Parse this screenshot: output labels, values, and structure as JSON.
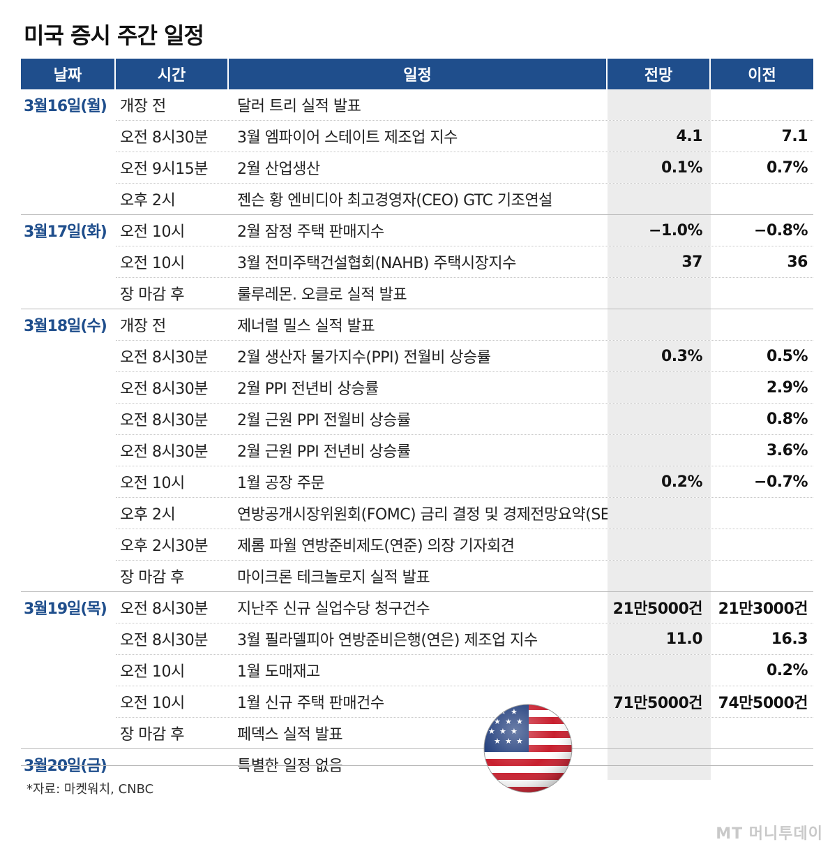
{
  "title": "미국 증시 주간 일정",
  "headers": [
    "날짜",
    "시간",
    "일정",
    "전망",
    "이전"
  ],
  "days": [
    {
      "date": "3월16일(월)",
      "rows": [
        {
          "time": "개장 전",
          "event": "달러 트리 실적 발표",
          "forecast": "",
          "previous": ""
        },
        {
          "time": "오전 8시30분",
          "event": "3월 엠파이어 스테이트 제조업 지수",
          "forecast": "4.1",
          "previous": "7.1"
        },
        {
          "time": "오전 9시15분",
          "event": "2월 산업생산",
          "forecast": "0.1%",
          "previous": "0.7%"
        },
        {
          "time": "오후 2시",
          "event": "젠슨 황 엔비디아 최고경영자(CEO) GTC 기조연설",
          "forecast": "",
          "previous": ""
        }
      ]
    },
    {
      "date": "3월17일(화)",
      "rows": [
        {
          "time": "오전 10시",
          "event": "2월 잠정 주택 판매지수",
          "forecast": "−1.0%",
          "previous": "−0.8%"
        },
        {
          "time": "오전 10시",
          "event": "3월 전미주택건설협회(NAHB) 주택시장지수",
          "forecast": "37",
          "previous": "36"
        },
        {
          "time": "장 마감 후",
          "event": "룰루레몬. 오클로 실적 발표",
          "forecast": "",
          "previous": ""
        }
      ]
    },
    {
      "date": "3월18일(수)",
      "rows": [
        {
          "time": "개장 전",
          "event": "제너럴 밀스 실적 발표",
          "forecast": "",
          "previous": ""
        },
        {
          "time": "오전 8시30분",
          "event": "2월 생산자 물가지수(PPI) 전월비 상승률",
          "forecast": "0.3%",
          "previous": "0.5%"
        },
        {
          "time": "오전 8시30분",
          "event": "2월 PPI 전년비 상승률",
          "forecast": "",
          "previous": "2.9%"
        },
        {
          "time": "오전 8시30분",
          "event": "2월 근원 PPI 전월비 상승률",
          "forecast": "",
          "previous": "0.8%"
        },
        {
          "time": "오전 8시30분",
          "event": "2월 근원 PPI 전년비 상승률",
          "forecast": "",
          "previous": "3.6%"
        },
        {
          "time": "오전 10시",
          "event": "1월 공장 주문",
          "forecast": "0.2%",
          "previous": "−0.7%"
        },
        {
          "time": "오후 2시",
          "event": "연방공개시장위원회(FOMC) 금리 결정 및 경제전망요약(SEP) 발표",
          "forecast": "",
          "previous": ""
        },
        {
          "time": "오후 2시30분",
          "event": "제롬 파월 연방준비제도(연준) 의장 기자회견",
          "forecast": "",
          "previous": ""
        },
        {
          "time": "장 마감 후",
          "event": "마이크론 테크놀로지 실적 발표",
          "forecast": "",
          "previous": ""
        }
      ]
    },
    {
      "date": "3월19일(목)",
      "rows": [
        {
          "time": "오전 8시30분",
          "event": "지난주 신규 실업수당 청구건수",
          "forecast": "21만5000건",
          "previous": "21만3000건"
        },
        {
          "time": "오전 8시30분",
          "event": "3월 필라델피아 연방준비은행(연은) 제조업 지수",
          "forecast": "11.0",
          "previous": "16.3"
        },
        {
          "time": "오전 10시",
          "event": "1월 도매재고",
          "forecast": "",
          "previous": "0.2%"
        },
        {
          "time": "오전 10시",
          "event": "1월 신규 주택 판매건수",
          "forecast": "71만5000건",
          "previous": "74만5000건"
        },
        {
          "time": "장 마감 후",
          "event": "페덱스 실적 발표",
          "forecast": "",
          "previous": ""
        }
      ]
    },
    {
      "date": "3월20일(금)",
      "rows": [
        {
          "time": "",
          "event": "특별한 일정 없음",
          "forecast": "",
          "previous": ""
        }
      ]
    }
  ],
  "source": "*자료: 마켓워치, CNBC",
  "logo": "MT 머니투데이",
  "icons": {
    "flag": "us-flag-icon"
  },
  "colors": {
    "header_bg": "#1f4e8c",
    "date_text": "#1f4e8c",
    "forecast_bg": "#ececec"
  }
}
